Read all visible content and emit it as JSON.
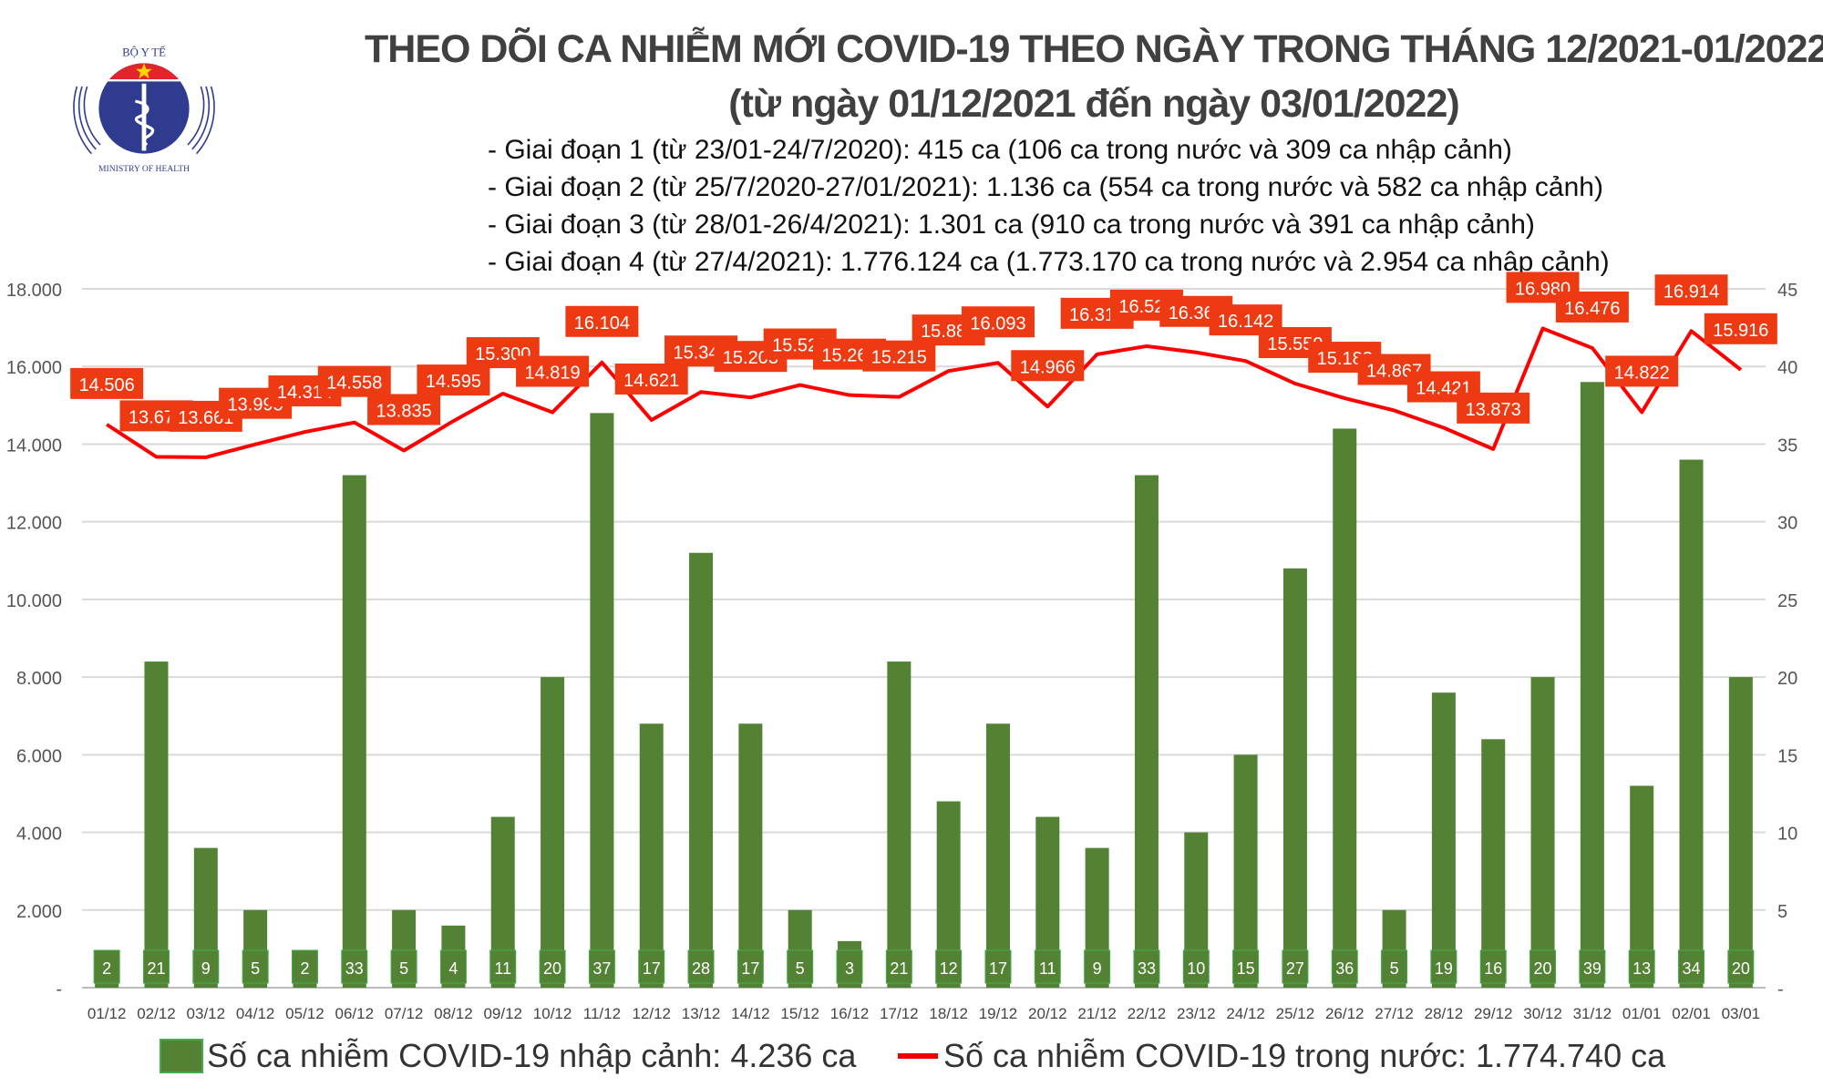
{
  "logo": {
    "top_text": "BỘ Y TẾ",
    "bottom_text": "MINISTRY OF HEALTH"
  },
  "header": {
    "title": "THEO DÕI CA NHIỄM MỚI COVID-19 THEO NGÀY TRONG THÁNG 12/2021-01/2022",
    "subtitle": "(từ ngày 01/12/2021 đến ngày 03/01/2022)",
    "stages": [
      "- Giai đoạn 1 (từ 23/01-24/7/2020): 415 ca (106 ca trong nước và 309 ca nhập cảnh)",
      "- Giai đoạn 2 (từ 25/7/2020-27/01/2021): 1.136 ca (554 ca trong nước và 582 ca nhập cảnh)",
      "- Giai đoạn 3 (từ 28/01-26/4/2021): 1.301 ca (910 ca trong nước và 391 ca nhập cảnh)",
      "- Giai đoạn 4 (từ 27/4/2021): 1.776.124 ca (1.773.170 ca trong nước và 2.954 ca nhập cảnh)"
    ]
  },
  "chart_data": {
    "type": "bar+line",
    "categories": [
      "01/12",
      "02/12",
      "03/12",
      "04/12",
      "05/12",
      "06/12",
      "07/12",
      "08/12",
      "09/12",
      "10/12",
      "11/12",
      "12/12",
      "13/12",
      "14/12",
      "15/12",
      "16/12",
      "17/12",
      "18/12",
      "19/12",
      "20/12",
      "21/12",
      "22/12",
      "23/12",
      "24/12",
      "25/12",
      "26/12",
      "27/12",
      "28/12",
      "29/12",
      "30/12",
      "31/12",
      "01/01",
      "02/01",
      "03/01"
    ],
    "series": [
      {
        "name": "Số ca nhiễm COVID-19 nhập cảnh: 4.236 ca",
        "type": "bar",
        "axis": "right",
        "color": "#548235",
        "values": [
          2,
          21,
          9,
          5,
          2,
          33,
          5,
          4,
          11,
          20,
          37,
          17,
          28,
          17,
          5,
          3,
          21,
          12,
          17,
          11,
          9,
          33,
          10,
          15,
          27,
          36,
          5,
          19,
          16,
          20,
          39,
          13,
          34,
          20
        ]
      },
      {
        "name": "Số ca nhiễm COVID-19 trong nước: 1.774.740 ca",
        "type": "line",
        "axis": "left",
        "color": "#ff0000",
        "label_color": "#ee3a12",
        "values": [
          14506,
          13673,
          13661,
          13995,
          14314,
          14558,
          13835,
          14595,
          15300,
          14819,
          16104,
          14621,
          15342,
          15203,
          15523,
          15262,
          15215,
          15883,
          16093,
          14966,
          16314,
          16523,
          16363,
          16142,
          15559,
          15183,
          14867,
          14421,
          13873,
          16980,
          16476,
          14822,
          16914,
          15916
        ]
      }
    ],
    "y_left": {
      "range": [
        0,
        18000
      ],
      "ticks": [
        "-",
        "2.000",
        "4.000",
        "6.000",
        "8.000",
        "10.000",
        "12.000",
        "14.000",
        "16.000",
        "18.000"
      ]
    },
    "y_right": {
      "range": [
        0,
        45
      ],
      "ticks": [
        "-",
        "5",
        "10",
        "15",
        "20",
        "25",
        "30",
        "35",
        "40",
        "45"
      ]
    },
    "grid": true,
    "legend": "bottom"
  }
}
